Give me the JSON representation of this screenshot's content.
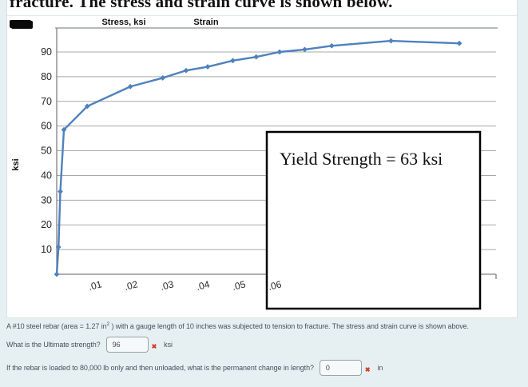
{
  "page": {
    "clipped_title": "fracture. The stress and strain curve is shown below."
  },
  "colors": {
    "page_bg": "#e6f0f3",
    "doc_bg": "#ffffff",
    "curve": "#4f81bd",
    "grid": "#a8a8a8",
    "axis": "#7f7f7f",
    "annotation_border": "#000000",
    "error_mark": "#d63a21",
    "body_text": "#46525c"
  },
  "chart_data": {
    "type": "line",
    "column_headers": [
      "Stress, ksi",
      "Strain"
    ],
    "ylabel": "ksi",
    "y_ticks": [
      10,
      20,
      30,
      40,
      50,
      60,
      70,
      80,
      90
    ],
    "x_tick_labels": [
      ".01",
      ".02",
      ".03",
      ".04",
      ".05",
      ".06"
    ],
    "x_tick_values": [
      0.01,
      0.02,
      0.03,
      0.04,
      0.05,
      0.06
    ],
    "xlim": [
      0,
      0.122
    ],
    "ylim": [
      0,
      95
    ],
    "grid": "horizontal",
    "legend": "none",
    "annotation": "Yield Strength = 63 ksi",
    "series": [
      {
        "name": "stress-strain-curve",
        "x": [
          0,
          0.0005,
          0.001,
          0.002,
          0.0085,
          0.0205,
          0.0295,
          0.036,
          0.042,
          0.049,
          0.0555,
          0.062,
          0.069,
          0.0765,
          0.093,
          0.112
        ],
        "y": [
          0,
          11,
          33.5,
          58.5,
          68,
          76,
          79.5,
          82.5,
          84,
          86.5,
          88,
          90,
          91,
          92.5,
          94.5,
          93.5
        ]
      }
    ]
  },
  "questions": {
    "problem_part1": "A #10 steel rebar (area = 1.27 in",
    "problem_sup": "2",
    "problem_part2": " ) with a gauge length of 10 inches was subjected to tension to fracture. The stress and strain curve is shown above.",
    "q1": {
      "label": "What is the Ultimate strength?",
      "value": "96",
      "unit": "ksi"
    },
    "q2": {
      "label": "If the rebar is loaded to 80,000 lb only and then unloaded, what is the permanent change in length?",
      "value": "0",
      "unit": "in"
    }
  },
  "icons": {
    "wrong_mark": "✖"
  }
}
